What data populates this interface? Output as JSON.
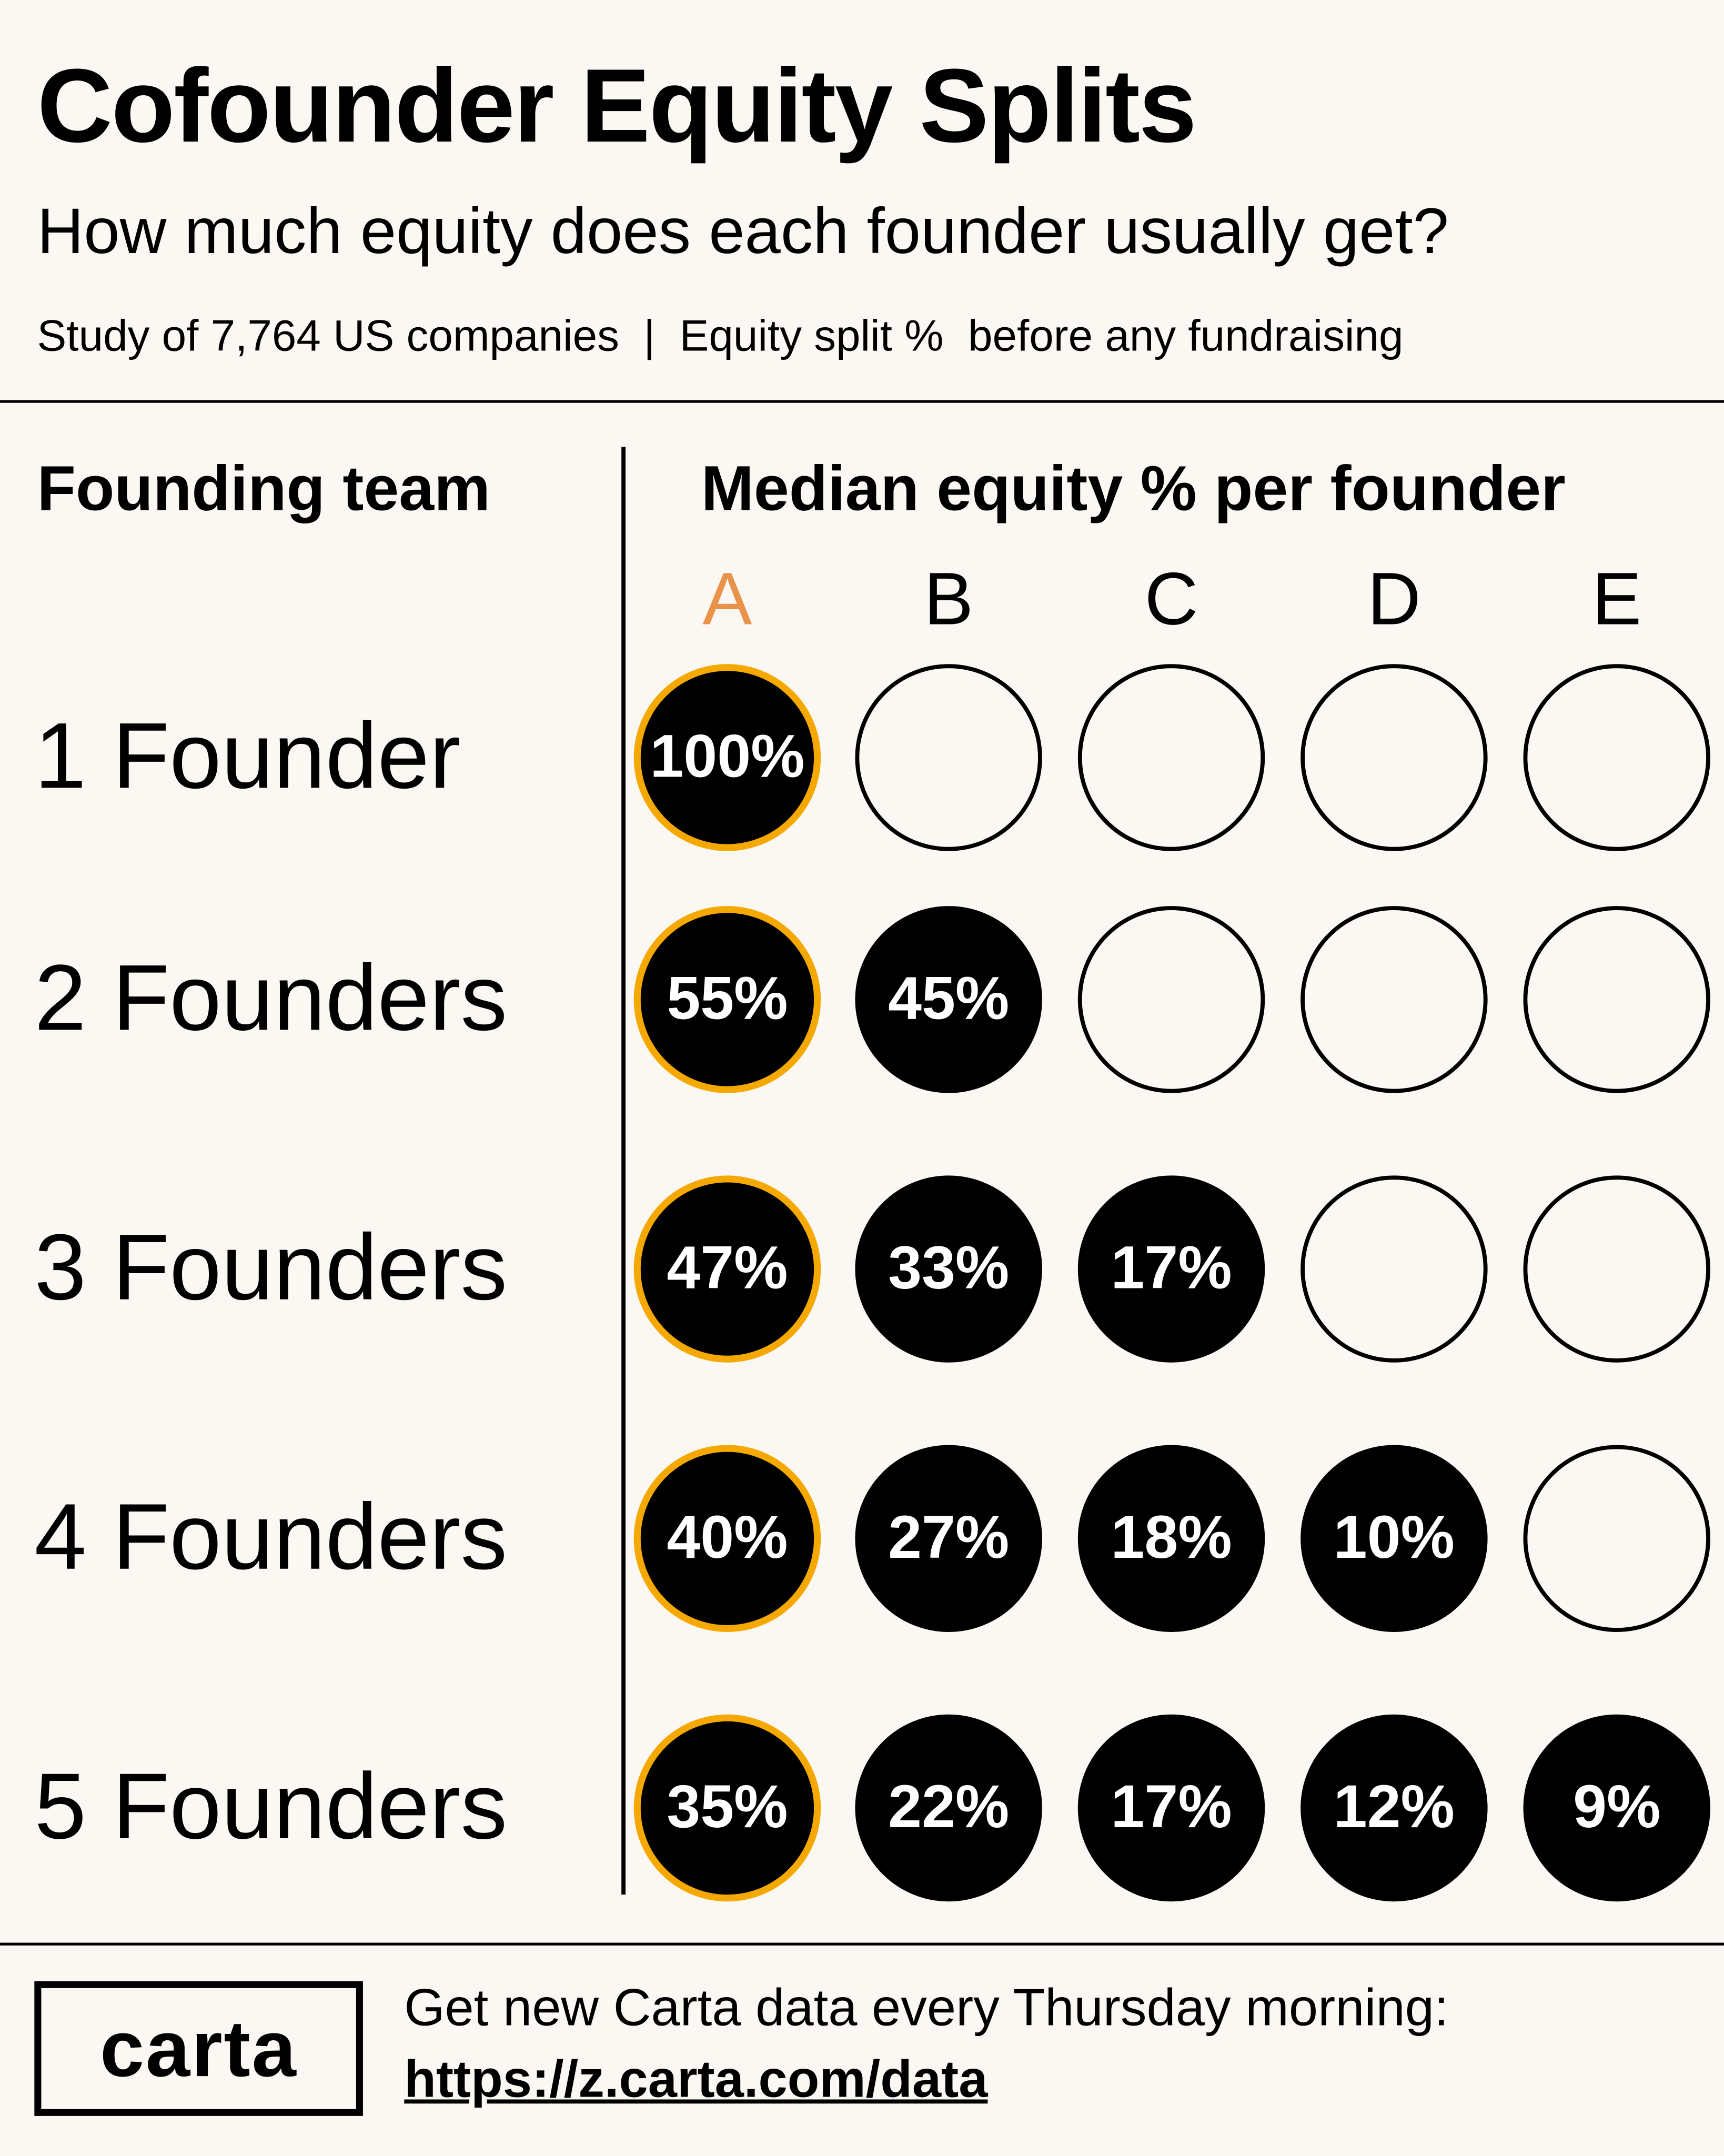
{
  "header": {
    "title": "Cofounder Equity Splits",
    "subtitle": "How much equity does each founder usually get?",
    "study": "Study of 7,764 US companies  |  Equity split %  before any fundraising"
  },
  "chart_data": {
    "type": "table",
    "row_header": "Founding team",
    "column_header": "Median equity % per founder",
    "columns": [
      "A",
      "B",
      "C",
      "D",
      "E"
    ],
    "rows": [
      {
        "label": "1 Founder",
        "values": [
          "100%",
          null,
          null,
          null,
          null
        ]
      },
      {
        "label": "2 Founders",
        "values": [
          "55%",
          "45%",
          null,
          null,
          null
        ]
      },
      {
        "label": "3 Founders",
        "values": [
          "47%",
          "33%",
          "17%",
          null,
          null
        ]
      },
      {
        "label": "4 Founders",
        "values": [
          "40%",
          "27%",
          "18%",
          "10%",
          null
        ]
      },
      {
        "label": "5 Founders",
        "values": [
          "35%",
          "22%",
          "17%",
          "12%",
          "9%"
        ]
      }
    ],
    "colors": {
      "highlight_ring": "#F5A800",
      "highlight_letter": "#E8924A",
      "filled": "#000000",
      "background": "#FBF8F3"
    }
  },
  "footer": {
    "logo": "carta",
    "cta": "Get new Carta data every Thursday morning:",
    "link": "https://z.carta.com/data"
  }
}
